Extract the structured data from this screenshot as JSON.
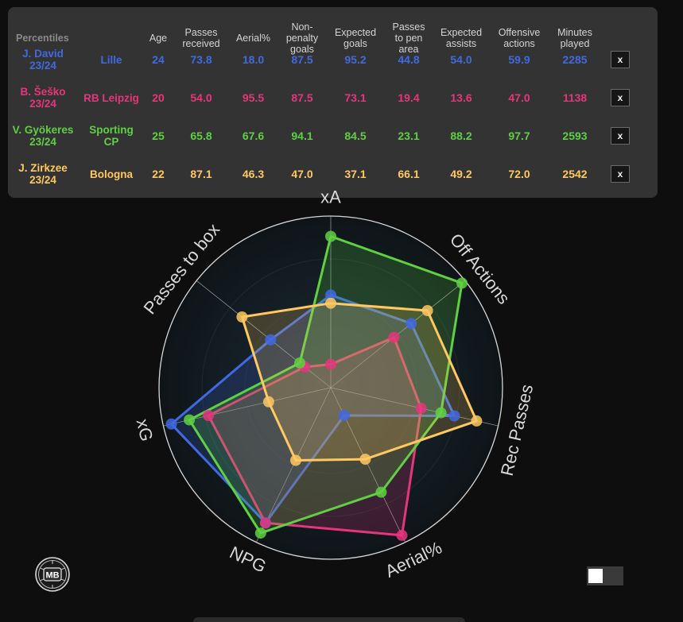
{
  "table": {
    "title": "Percentiles",
    "headers": [
      "Age",
      "Passes received",
      "Aerial%",
      "Non-penalty goals",
      "Expected goals",
      "Passes to pen area",
      "Expected assists",
      "Offensive actions",
      "Minutes played"
    ],
    "remove_label": "x",
    "rows": [
      {
        "player": "J. David 23/24",
        "team": "Lille",
        "color": "#4169e1",
        "values": [
          "24",
          "73.8",
          "18.0",
          "87.5",
          "95.2",
          "44.8",
          "54.0",
          "59.9",
          "2285"
        ]
      },
      {
        "player": "B. Šeško 23/24",
        "team": "RB Leipzig",
        "color": "#e6357d",
        "values": [
          "20",
          "54.0",
          "95.5",
          "87.5",
          "73.1",
          "19.4",
          "13.6",
          "47.0",
          "1138"
        ]
      },
      {
        "player": "V. Gyökeres 23/24",
        "team": "Sporting CP",
        "color": "#5fd042",
        "values": [
          "25",
          "65.8",
          "67.6",
          "94.1",
          "84.5",
          "23.1",
          "88.2",
          "97.7",
          "2593"
        ]
      },
      {
        "player": "J. Zirkzee 23/24",
        "team": "Bologna",
        "color": "#ffc861",
        "values": [
          "22",
          "87.1",
          "46.3",
          "47.0",
          "37.1",
          "66.1",
          "49.2",
          "72.0",
          "2542"
        ]
      }
    ]
  },
  "chart_data": {
    "type": "radar",
    "axes": [
      "xA",
      "Off Actions",
      "Rec Passes",
      "Aerial%",
      "NPG",
      "xG",
      "Passes to box"
    ],
    "range": [
      0,
      100
    ],
    "series": [
      {
        "name": "J. David 23/24",
        "color": "#4169e1",
        "values": [
          54.0,
          59.9,
          73.8,
          18.0,
          87.5,
          95.2,
          44.8
        ]
      },
      {
        "name": "B. Šeško 23/24",
        "color": "#e6357d",
        "values": [
          13.6,
          47.0,
          54.0,
          95.5,
          87.5,
          73.1,
          19.4
        ]
      },
      {
        "name": "V. Gyökeres 23/24",
        "color": "#5fd042",
        "values": [
          88.2,
          97.7,
          65.8,
          67.6,
          94.1,
          84.5,
          23.1
        ]
      },
      {
        "name": "J. Zirkzee 23/24",
        "color": "#ffc861",
        "values": [
          49.2,
          72.0,
          87.1,
          46.3,
          47.0,
          37.1,
          66.1
        ]
      }
    ]
  },
  "logo_text": "MB",
  "toggle": {
    "state": "off"
  }
}
